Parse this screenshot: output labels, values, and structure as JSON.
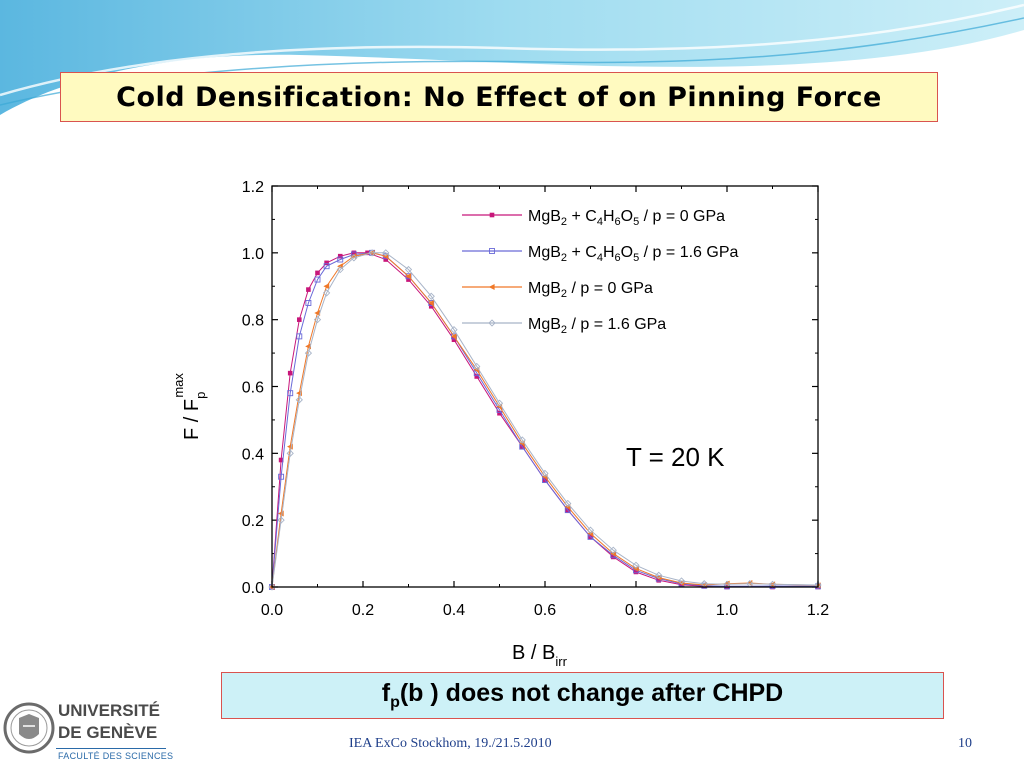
{
  "slide": {
    "title": "Cold Densification: No Effect of on Pinning Force",
    "conclusion_main": "(b ) does not change after CHPD",
    "conclusion_f": "f",
    "conclusion_sub": "p",
    "footer_conference": "IEA ExCo Stockhom, 19./21.5.2010",
    "page_number": "10",
    "logo_line1": "UNIVERSITÉ",
    "logo_line2": "DE GENÈVE",
    "logo_faculty": "FACULTÉ DES SCIENCES"
  },
  "chart_data": {
    "type": "scatter",
    "title": "",
    "xlabel": "B / B",
    "xlabel_sub": "irr",
    "ylabel": "F  / F",
    "ylabel_sub": "p",
    "ylabel_sup": "max",
    "xlim": [
      0.0,
      1.2
    ],
    "ylim": [
      0.0,
      1.2
    ],
    "xticks": [
      "0.0",
      "0.2",
      "0.4",
      "0.6",
      "0.8",
      "1.0",
      "1.2"
    ],
    "yticks": [
      "0.0",
      "0.2",
      "0.4",
      "0.6",
      "0.8",
      "1.0",
      "1.2"
    ],
    "annotation": "T = 20 K",
    "legend_position": "top-right",
    "series": [
      {
        "name": "MgB2 + C4H6O5 / p = 0 GPa",
        "color": "#c8167a",
        "marker": "square-filled",
        "x": [
          0.0,
          0.02,
          0.04,
          0.06,
          0.08,
          0.1,
          0.12,
          0.15,
          0.18,
          0.21,
          0.25,
          0.3,
          0.35,
          0.4,
          0.45,
          0.5,
          0.55,
          0.6,
          0.65,
          0.7,
          0.75,
          0.8,
          0.85,
          0.9,
          0.95,
          1.0,
          1.1,
          1.2
        ],
        "y": [
          0.0,
          0.38,
          0.64,
          0.8,
          0.89,
          0.94,
          0.97,
          0.99,
          1.0,
          1.0,
          0.98,
          0.92,
          0.84,
          0.74,
          0.63,
          0.52,
          0.42,
          0.32,
          0.23,
          0.15,
          0.09,
          0.045,
          0.02,
          0.007,
          0.002,
          0.0,
          0.0,
          0.0
        ]
      },
      {
        "name": "MgB2 + C4H6O5 / p = 1.6 GPa",
        "color": "#6a6ad8",
        "marker": "square-open",
        "x": [
          0.0,
          0.02,
          0.04,
          0.06,
          0.08,
          0.1,
          0.12,
          0.15,
          0.18,
          0.22,
          0.25,
          0.3,
          0.35,
          0.4,
          0.45,
          0.5,
          0.55,
          0.6,
          0.65,
          0.7,
          0.75,
          0.8,
          0.85,
          0.9,
          0.95,
          1.0,
          1.1,
          1.2
        ],
        "y": [
          0.0,
          0.33,
          0.58,
          0.75,
          0.85,
          0.92,
          0.96,
          0.98,
          0.995,
          1.0,
          0.99,
          0.93,
          0.85,
          0.75,
          0.64,
          0.53,
          0.42,
          0.32,
          0.23,
          0.15,
          0.095,
          0.05,
          0.025,
          0.01,
          0.004,
          0.002,
          0.003,
          0.002
        ]
      },
      {
        "name": "MgB2 / p = 0 GPa",
        "color": "#f07828",
        "marker": "triangle-left",
        "x": [
          0.0,
          0.02,
          0.04,
          0.06,
          0.08,
          0.1,
          0.12,
          0.15,
          0.18,
          0.22,
          0.25,
          0.3,
          0.35,
          0.4,
          0.45,
          0.5,
          0.55,
          0.6,
          0.65,
          0.7,
          0.75,
          0.8,
          0.85,
          0.9,
          0.95,
          1.0,
          1.05,
          1.1,
          1.2
        ],
        "y": [
          0.0,
          0.22,
          0.42,
          0.58,
          0.72,
          0.82,
          0.9,
          0.96,
          0.99,
          1.0,
          0.99,
          0.93,
          0.85,
          0.75,
          0.65,
          0.54,
          0.43,
          0.33,
          0.24,
          0.16,
          0.1,
          0.055,
          0.028,
          0.012,
          0.006,
          0.01,
          0.012,
          0.008,
          0.005
        ]
      },
      {
        "name": "MgB2 / p = 1.6 GPa",
        "color": "#a8b4c8",
        "marker": "diamond-open",
        "x": [
          0.0,
          0.02,
          0.04,
          0.06,
          0.08,
          0.1,
          0.12,
          0.15,
          0.18,
          0.22,
          0.25,
          0.3,
          0.35,
          0.4,
          0.45,
          0.5,
          0.55,
          0.6,
          0.65,
          0.7,
          0.75,
          0.8,
          0.85,
          0.9,
          0.95,
          1.0,
          1.05,
          1.1,
          1.2
        ],
        "y": [
          0.0,
          0.2,
          0.4,
          0.56,
          0.7,
          0.8,
          0.88,
          0.95,
          0.985,
          1.0,
          1.0,
          0.95,
          0.87,
          0.77,
          0.66,
          0.55,
          0.44,
          0.34,
          0.25,
          0.17,
          0.11,
          0.065,
          0.035,
          0.018,
          0.01,
          0.008,
          0.01,
          0.008,
          0.006
        ]
      }
    ]
  }
}
